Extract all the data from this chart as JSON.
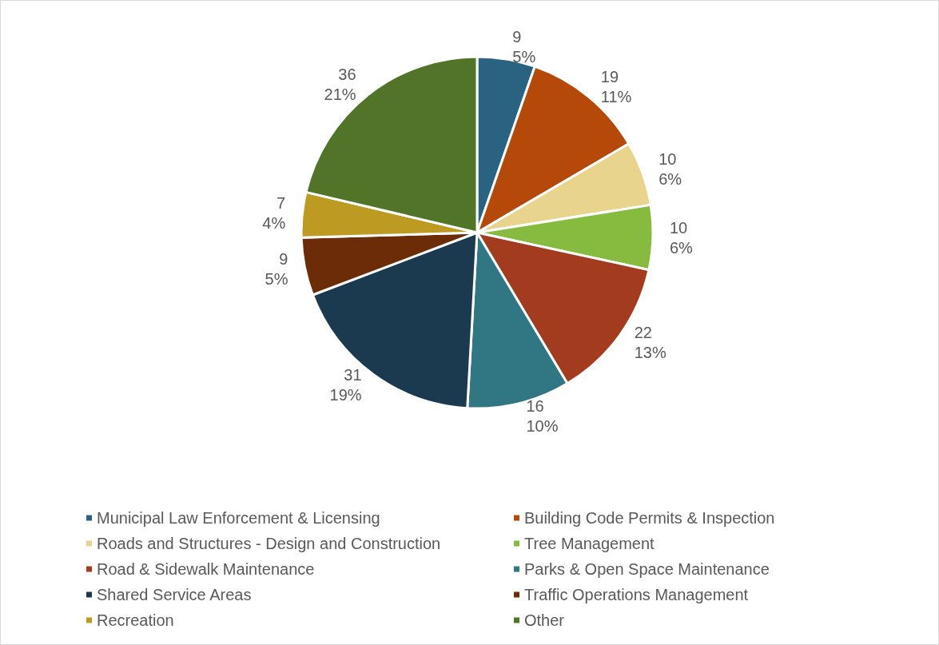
{
  "chart_data": {
    "type": "pie",
    "categories": [
      "Municipal Law Enforcement & Licensing",
      "Building Code Permits & Inspection",
      "Roads and Structures - Design and Construction",
      "Tree Management",
      "Road & Sidewalk Maintenance",
      "Parks & Open Space Maintenance",
      "Shared Service Areas",
      "Traffic Operations Management",
      "Recreation",
      "Other"
    ],
    "values": [
      9,
      19,
      10,
      10,
      22,
      16,
      31,
      9,
      7,
      36
    ],
    "value_labels": [
      "9\n5%",
      "19\n11%",
      "10\n6%",
      "10\n6%",
      "22\n13%",
      "16\n10%",
      "31\n19%",
      "9\n5%",
      "7\n4%",
      "36\n21%"
    ],
    "colors": [
      "#2a6282",
      "#b5490a",
      "#e8d48c",
      "#86bb3f",
      "#a33b1e",
      "#307683",
      "#1b3a4f",
      "#6b2c07",
      "#bd9b23",
      "#527428"
    ],
    "legend": "bottom"
  }
}
